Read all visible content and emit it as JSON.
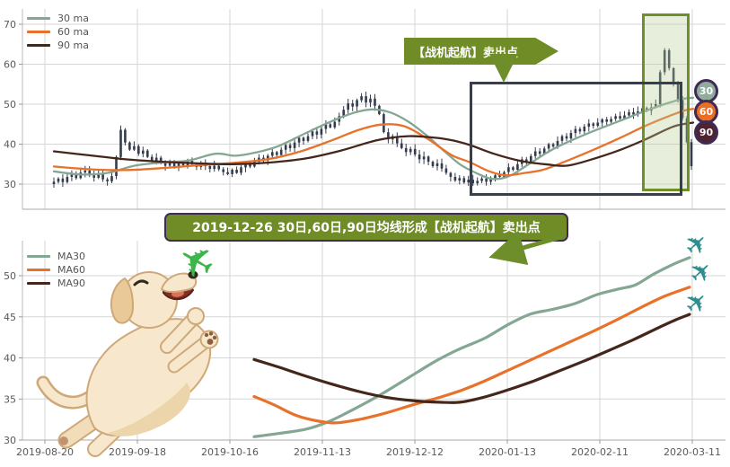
{
  "colors": {
    "ma30": "#84a794",
    "ma60": "#e8722a",
    "ma90": "#45261b",
    "candle": "#333b4d",
    "grid": "#d6d6d6",
    "axis_text": "#595959",
    "box_border": "#363e52",
    "band_border": "#6d9027",
    "annotation_green": "#6f8c26",
    "arrow_green": "#6d8e2a",
    "annotation_border": "#3f2b55",
    "plane_teal": "#2d8f8d",
    "plane_green": "#3cb54a"
  },
  "icons": {
    "plane": "✈"
  },
  "annotations": {
    "sell_label": {
      "text": "【战机起航】卖出点"
    },
    "banner": {
      "text": "2019-12-26 30日,60日,90日均线形成【战机起航】卖出点"
    }
  },
  "badges": [
    {
      "label": "30",
      "color": "#8fac9c"
    },
    {
      "label": "60",
      "color": "#e96f26"
    },
    {
      "label": "90",
      "color": "#4f2330"
    }
  ],
  "chart_data": [
    {
      "type": "candlestick",
      "title": "",
      "ylabel": "",
      "ylim": [
        24,
        74
      ],
      "y_ticks": [
        30,
        40,
        50,
        60,
        70
      ],
      "grid": true,
      "legend_position": "upper-left",
      "candles": {
        "color": "#333b4d",
        "close": [
          30.6,
          31.4,
          30.5,
          31.8,
          32.4,
          31.5,
          32.9,
          33.4,
          32.2,
          31.6,
          32.5,
          31.2,
          30.7,
          32.0,
          36.8,
          43.6,
          40.4,
          38.6,
          39.5,
          37.6,
          38.4,
          36.8,
          35.9,
          36.6,
          35.2,
          34.6,
          35.3,
          34.4,
          35.5,
          34.7,
          35.8,
          35.0,
          34.3,
          35.2,
          34.5,
          33.8,
          34.6,
          33.7,
          33.0,
          32.5,
          33.6,
          32.8,
          34.2,
          35.0,
          34.4,
          35.6,
          36.6,
          35.9,
          37.1,
          38.0,
          37.3,
          38.6,
          39.8,
          39.0,
          40.4,
          41.6,
          40.8,
          42.0,
          43.2,
          42.4,
          43.8,
          45.0,
          44.2,
          45.6,
          47.0,
          48.6,
          50.2,
          49.4,
          51.0,
          52.0,
          50.4,
          51.4,
          49.6,
          47.5,
          43.0,
          41.2,
          42.0,
          40.2,
          39.0,
          38.0,
          38.8,
          37.4,
          36.2,
          36.9,
          35.6,
          34.5,
          35.2,
          33.9,
          32.8,
          31.8,
          30.9,
          31.5,
          30.4,
          31.1,
          30.2,
          30.8,
          31.4,
          30.6,
          31.2,
          32.2,
          31.8,
          33.0,
          34.2,
          33.6,
          35.0,
          36.2,
          35.6,
          37.0,
          38.2,
          37.6,
          38.9,
          40.0,
          39.4,
          40.8,
          42.0,
          41.4,
          42.8,
          43.8,
          43.2,
          44.4,
          45.2,
          44.6,
          45.4,
          46.2,
          45.6,
          46.3,
          47.0,
          46.4,
          47.2,
          48.0,
          47.4,
          48.2,
          49.0,
          48.4,
          49.2,
          50.0,
          58.0,
          63.5,
          59.0,
          55.0,
          51.0,
          46.5,
          40.5,
          34.5
        ]
      },
      "series": [
        {
          "name": "30 ma",
          "color": "#84a794",
          "keypoints": [
            [
              60,
              33.2
            ],
            [
              90,
              32.4
            ],
            [
              120,
              32.8
            ],
            [
              150,
              34.6
            ],
            [
              180,
              35.4
            ],
            [
              210,
              35.9
            ],
            [
              240,
              37.6
            ],
            [
              262,
              37.1
            ],
            [
              285,
              37.9
            ],
            [
              310,
              39.5
            ],
            [
              340,
              42.7
            ],
            [
              370,
              45.8
            ],
            [
              395,
              47.9
            ],
            [
              415,
              48.7
            ],
            [
              435,
              47.9
            ],
            [
              455,
              45.6
            ],
            [
              475,
              42.2
            ],
            [
              495,
              38.2
            ],
            [
              512,
              35.0
            ],
            [
              530,
              32.8
            ],
            [
              548,
              31.3
            ],
            [
              566,
              31.9
            ],
            [
              585,
              34.4
            ],
            [
              610,
              38.0
            ],
            [
              630,
              40.3
            ],
            [
              660,
              43.2
            ],
            [
              690,
              45.8
            ],
            [
              715,
              48.0
            ],
            [
              740,
              50.0
            ],
            [
              760,
              51.3
            ],
            [
              772,
              51.6
            ]
          ]
        },
        {
          "name": "60 ma",
          "color": "#e8722a",
          "keypoints": [
            [
              60,
              34.4
            ],
            [
              100,
              33.7
            ],
            [
              140,
              33.5
            ],
            [
              180,
              34.0
            ],
            [
              220,
              34.7
            ],
            [
              260,
              35.3
            ],
            [
              300,
              36.3
            ],
            [
              335,
              38.2
            ],
            [
              370,
              41.0
            ],
            [
              400,
              43.6
            ],
            [
              425,
              44.9
            ],
            [
              450,
              44.5
            ],
            [
              475,
              41.5
            ],
            [
              490,
              39.2
            ],
            [
              505,
              37.0
            ],
            [
              523,
              35.5
            ],
            [
              545,
              33.2
            ],
            [
              564,
              32.2
            ],
            [
              585,
              32.8
            ],
            [
              605,
              33.6
            ],
            [
              630,
              35.7
            ],
            [
              660,
              38.5
            ],
            [
              690,
              41.5
            ],
            [
              720,
              44.7
            ],
            [
              745,
              47.0
            ],
            [
              762,
              48.4
            ],
            [
              772,
              48.8
            ]
          ]
        },
        {
          "name": "90 ma",
          "color": "#45261b",
          "keypoints": [
            [
              60,
              38.2
            ],
            [
              100,
              37.2
            ],
            [
              140,
              36.2
            ],
            [
              180,
              35.6
            ],
            [
              220,
              35.2
            ],
            [
              260,
              35.0
            ],
            [
              300,
              35.4
            ],
            [
              340,
              36.4
            ],
            [
              380,
              38.4
            ],
            [
              420,
              41.0
            ],
            [
              455,
              42.0
            ],
            [
              485,
              41.6
            ],
            [
              505,
              40.9
            ],
            [
              523,
              39.8
            ],
            [
              550,
              37.6
            ],
            [
              580,
              35.8
            ],
            [
              610,
              34.9
            ],
            [
              631,
              34.6
            ],
            [
              655,
              35.9
            ],
            [
              690,
              38.5
            ],
            [
              720,
              41.3
            ],
            [
              750,
              44.4
            ],
            [
              772,
              45.4
            ]
          ]
        }
      ]
    },
    {
      "type": "line",
      "title": "",
      "ylabel": "",
      "ylim": [
        28,
        54
      ],
      "y_ticks": [
        30,
        35,
        40,
        45,
        50
      ],
      "grid": true,
      "legend_position": "upper-left",
      "x_tick_labels": [
        "2019-08-20",
        "2019-09-18",
        "2019-10-16",
        "2019-11-13",
        "2019-12-12",
        "2020-01-13",
        "2020-02-11",
        "2020-03-11"
      ],
      "series": [
        {
          "name": "MA30",
          "color": "#84a794",
          "keypoints": [
            [
              283,
              30.4
            ],
            [
              310,
              30.8
            ],
            [
              340,
              31.3
            ],
            [
              365,
              32.2
            ],
            [
              395,
              33.8
            ],
            [
              425,
              35.6
            ],
            [
              455,
              37.6
            ],
            [
              485,
              39.6
            ],
            [
              510,
              41.0
            ],
            [
              540,
              42.4
            ],
            [
              565,
              44.0
            ],
            [
              590,
              45.3
            ],
            [
              615,
              45.9
            ],
            [
              640,
              46.6
            ],
            [
              665,
              47.7
            ],
            [
              690,
              48.4
            ],
            [
              708,
              48.9
            ],
            [
              728,
              50.2
            ],
            [
              750,
              51.4
            ],
            [
              768,
              52.2
            ]
          ]
        },
        {
          "name": "MA60",
          "color": "#e8722a",
          "keypoints": [
            [
              283,
              35.3
            ],
            [
              305,
              34.3
            ],
            [
              330,
              33.0
            ],
            [
              355,
              32.3
            ],
            [
              375,
              32.1
            ],
            [
              400,
              32.5
            ],
            [
              430,
              33.3
            ],
            [
              460,
              34.3
            ],
            [
              490,
              35.2
            ],
            [
              515,
              36.1
            ],
            [
              540,
              37.2
            ],
            [
              570,
              38.7
            ],
            [
              600,
              40.2
            ],
            [
              630,
              41.7
            ],
            [
              660,
              43.2
            ],
            [
              690,
              44.8
            ],
            [
              715,
              46.2
            ],
            [
              740,
              47.5
            ],
            [
              768,
              48.6
            ]
          ]
        },
        {
          "name": "MA90",
          "color": "#45261b",
          "keypoints": [
            [
              283,
              39.8
            ],
            [
              310,
              38.9
            ],
            [
              340,
              37.8
            ],
            [
              370,
              36.8
            ],
            [
              400,
              35.9
            ],
            [
              430,
              35.2
            ],
            [
              460,
              34.8
            ],
            [
              490,
              34.6
            ],
            [
              512,
              34.6
            ],
            [
              535,
              35.1
            ],
            [
              560,
              35.9
            ],
            [
              590,
              37.0
            ],
            [
              620,
              38.3
            ],
            [
              650,
              39.6
            ],
            [
              680,
              41.0
            ],
            [
              705,
              42.2
            ],
            [
              730,
              43.5
            ],
            [
              752,
              44.6
            ],
            [
              768,
              45.3
            ]
          ]
        }
      ]
    }
  ]
}
